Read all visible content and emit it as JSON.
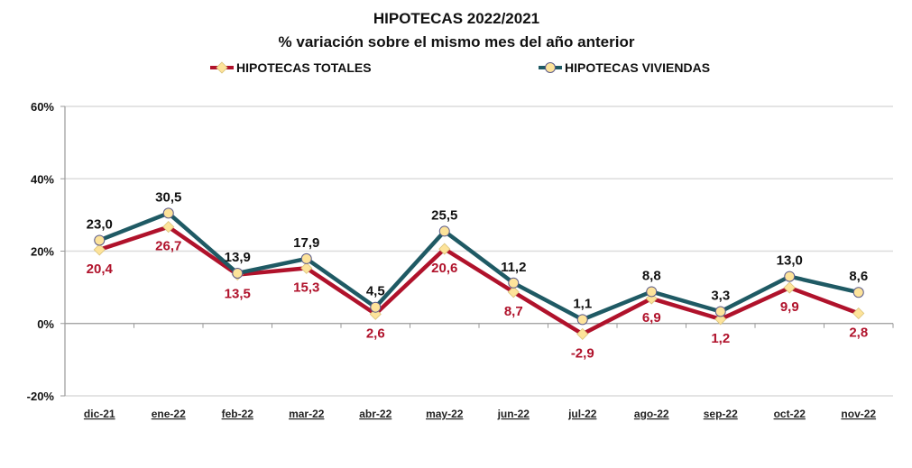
{
  "chart_data": {
    "type": "line",
    "title": "HIPOTECAS 2022/2021",
    "subtitle": "% variación sobre el mismo mes del año anterior",
    "xlabel": "",
    "ylabel": "",
    "categories": [
      "dic-21",
      "ene-22",
      "feb-22",
      "mar-22",
      "abr-22",
      "may-22",
      "jun-22",
      "jul-22",
      "ago-22",
      "sep-22",
      "oct-22",
      "nov-22"
    ],
    "ylim": [
      -20,
      60
    ],
    "yticks": [
      -20,
      0,
      20,
      40,
      60
    ],
    "ytick_labels": [
      "-20%",
      "0%",
      "20%",
      "40%",
      "60%"
    ],
    "grid": true,
    "legend_position": "top",
    "series": [
      {
        "name": "HIPOTECAS TOTALES",
        "color": "#b0122b",
        "marker": "diamond",
        "marker_color": "#fde39a",
        "label_color": "#b0122b",
        "label_position": "below",
        "values": [
          20.4,
          26.7,
          13.5,
          15.3,
          2.6,
          20.6,
          8.7,
          -2.9,
          6.9,
          1.2,
          9.9,
          2.8
        ],
        "labels": [
          "20,4",
          "26,7",
          "13,5",
          "15,3",
          "2,6",
          "20,6",
          "8,7",
          "-2,9",
          "6,9",
          "1,2",
          "9,9",
          "2,8"
        ]
      },
      {
        "name": "HIPOTECAS VIVIENDAS",
        "color": "#1f5a64",
        "marker": "circle",
        "marker_color": "#fde39a",
        "label_color": "#111111",
        "label_position": "above",
        "values": [
          23.0,
          30.5,
          13.9,
          17.9,
          4.5,
          25.5,
          11.2,
          1.1,
          8.8,
          3.3,
          13.0,
          8.6
        ],
        "labels": [
          "23,0",
          "30,5",
          "13,9",
          "17,9",
          "4,5",
          "25,5",
          "11,2",
          "1,1",
          "8,8",
          "3,3",
          "13,0",
          "8,6"
        ]
      }
    ]
  }
}
